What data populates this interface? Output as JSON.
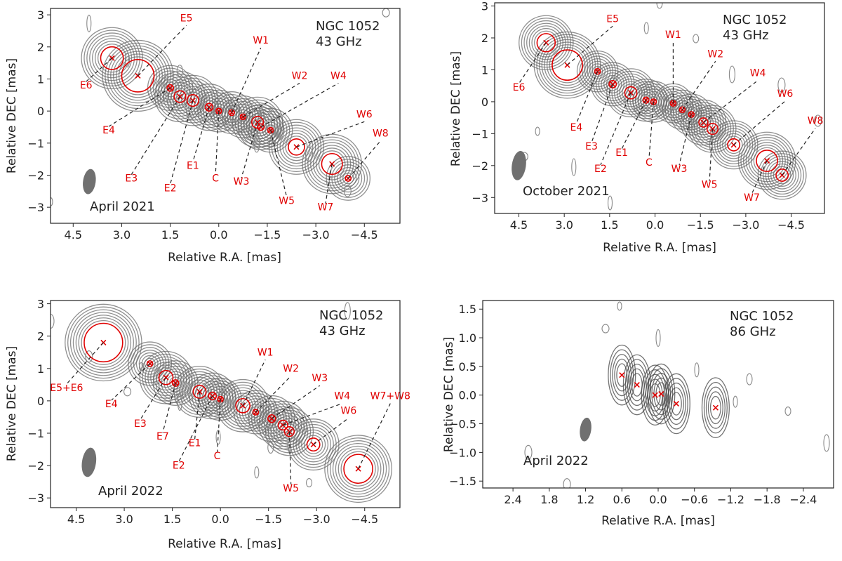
{
  "chart_data": [
    {
      "type": "scatter",
      "title": [
        "NGC 1052",
        "43 GHz"
      ],
      "epoch": "April 2021",
      "xlabel": "Relative R.A. [mas]",
      "ylabel": "Relative DEC [mas]",
      "xlim": [
        5.2,
        -5.6
      ],
      "ylim": [
        -3.5,
        3.2
      ],
      "x_ticks": [
        4.5,
        3.0,
        1.5,
        0.0,
        -1.5,
        -3.0,
        -4.5
      ],
      "x_tick_labels": [
        "4.5",
        "3.0",
        "1.5",
        "0.0",
        "−1.5",
        "−3.0",
        "−4.5"
      ],
      "y_ticks": [
        3,
        2,
        1,
        0,
        -1,
        -2,
        -3
      ],
      "y_tick_labels": [
        "3",
        "2",
        "1",
        "0",
        "−1",
        "−2",
        "−3"
      ],
      "beam": {
        "x": 4.0,
        "y": -2.2
      },
      "components": [
        {
          "name": "E6",
          "x": 3.3,
          "y": 1.65,
          "size": 0.35,
          "label_x": 4.1,
          "label_y": 0.7
        },
        {
          "name": "E5",
          "x": 2.5,
          "y": 1.1,
          "size": 0.5,
          "label_x": 1.0,
          "label_y": 2.8
        },
        {
          "name": "E4",
          "x": 1.5,
          "y": 0.72,
          "size": 0.1,
          "label_x": 3.4,
          "label_y": -0.7
        },
        {
          "name": "E3",
          "x": 1.2,
          "y": 0.45,
          "size": 0.18,
          "label_x": 2.7,
          "label_y": -2.2
        },
        {
          "name": "E2",
          "x": 0.8,
          "y": 0.33,
          "size": 0.18,
          "label_x": 1.5,
          "label_y": -2.5
        },
        {
          "name": "E1",
          "x": 0.3,
          "y": 0.12,
          "size": 0.12,
          "label_x": 0.8,
          "label_y": -1.8
        },
        {
          "name": "C",
          "x": 0.0,
          "y": 0.0,
          "size": 0.05,
          "label_x": 0.1,
          "label_y": -2.2
        },
        {
          "name": "W1",
          "x": -0.4,
          "y": -0.05,
          "size": 0.05,
          "label_x": -1.3,
          "label_y": 2.1
        },
        {
          "name": "W2",
          "x": -0.75,
          "y": -0.18,
          "size": 0.05,
          "label_x": -2.5,
          "label_y": 1.0
        },
        {
          "name": "W3",
          "x": -1.2,
          "y": -0.35,
          "size": 0.18,
          "label_x": -0.7,
          "label_y": -2.3
        },
        {
          "name": "W4",
          "x": -1.3,
          "y": -0.5,
          "size": 0.1,
          "label_x": -3.7,
          "label_y": 1.0
        },
        {
          "name": "W5",
          "x": -1.6,
          "y": -0.6,
          "size": 0.08,
          "label_x": -2.1,
          "label_y": -2.9
        },
        {
          "name": "W6",
          "x": -2.4,
          "y": -1.12,
          "size": 0.25,
          "label_x": -4.5,
          "label_y": -0.2
        },
        {
          "name": "W7",
          "x": -3.5,
          "y": -1.65,
          "size": 0.32,
          "label_x": -3.3,
          "label_y": -3.1
        },
        {
          "name": "W8",
          "x": -4.0,
          "y": -2.1,
          "size": 0.08,
          "label_x": -5.0,
          "label_y": -0.8
        }
      ]
    },
    {
      "type": "scatter",
      "title": [
        "NGC 1052",
        "43 GHz"
      ],
      "epoch": "October 2021",
      "xlabel": "Relative R.A. [mas]",
      "ylabel": "Relative DEC [mas]",
      "xlim": [
        5.3,
        -5.6
      ],
      "ylim": [
        -3.5,
        3.1
      ],
      "x_ticks": [
        4.5,
        3.0,
        1.5,
        0.0,
        -1.5,
        -3.0,
        -4.5
      ],
      "x_tick_labels": [
        "4.5",
        "3.0",
        "1.5",
        "0.0",
        "−1.5",
        "−3.0",
        "−4.5"
      ],
      "y_ticks": [
        3,
        2,
        1,
        0,
        -1,
        -2,
        -3
      ],
      "y_tick_labels": [
        "3",
        "2",
        "1",
        "0",
        "−1",
        "−2",
        "−3"
      ],
      "beam": {
        "x": 4.5,
        "y": -2.0
      },
      "components": [
        {
          "name": "E6",
          "x": 3.6,
          "y": 1.85,
          "size": 0.3,
          "label_x": 4.5,
          "label_y": 0.35
        },
        {
          "name": "E5",
          "x": 2.9,
          "y": 1.15,
          "size": 0.5,
          "label_x": 1.4,
          "label_y": 2.5
        },
        {
          "name": "E4",
          "x": 1.9,
          "y": 0.95,
          "size": 0.08,
          "label_x": 2.6,
          "label_y": -0.9
        },
        {
          "name": "E3",
          "x": 1.4,
          "y": 0.55,
          "size": 0.12,
          "label_x": 2.1,
          "label_y": -1.5
        },
        {
          "name": "E2",
          "x": 0.8,
          "y": 0.28,
          "size": 0.2,
          "label_x": 1.8,
          "label_y": -2.2
        },
        {
          "name": "E1",
          "x": 0.3,
          "y": 0.05,
          "size": 0.1,
          "label_x": 1.1,
          "label_y": -1.7
        },
        {
          "name": "C",
          "x": 0.05,
          "y": 0.0,
          "size": 0.08,
          "label_x": 0.2,
          "label_y": -2.0
        },
        {
          "name": "W1",
          "x": -0.6,
          "y": -0.05,
          "size": 0.05,
          "label_x": -0.6,
          "label_y": 2.0
        },
        {
          "name": "W2",
          "x": -0.9,
          "y": -0.25,
          "size": 0.05,
          "label_x": -2.0,
          "label_y": 1.4
        },
        {
          "name": "W3",
          "x": -1.2,
          "y": -0.4,
          "size": 0.08,
          "label_x": -0.8,
          "label_y": -2.2
        },
        {
          "name": "W4",
          "x": -1.6,
          "y": -0.65,
          "size": 0.15,
          "label_x": -3.4,
          "label_y": 0.8
        },
        {
          "name": "W5",
          "x": -1.9,
          "y": -0.85,
          "size": 0.18,
          "label_x": -1.8,
          "label_y": -2.7
        },
        {
          "name": "W6",
          "x": -2.6,
          "y": -1.35,
          "size": 0.2,
          "label_x": -4.3,
          "label_y": 0.15
        },
        {
          "name": "W7",
          "x": -3.7,
          "y": -1.85,
          "size": 0.35,
          "label_x": -3.2,
          "label_y": -3.1
        },
        {
          "name": "W8",
          "x": -4.2,
          "y": -2.3,
          "size": 0.2,
          "label_x": -5.3,
          "label_y": -0.7
        }
      ]
    },
    {
      "type": "scatter",
      "title": [
        "NGC 1052",
        "43 GHz"
      ],
      "epoch": "April 2022",
      "xlabel": "Relative R.A. [mas]",
      "ylabel": "Relative DEC [mas]",
      "xlim": [
        5.3,
        -5.6
      ],
      "ylim": [
        -3.3,
        3.1
      ],
      "x_ticks": [
        4.5,
        3.0,
        1.5,
        0.0,
        -1.5,
        -3.0,
        -4.5
      ],
      "x_tick_labels": [
        "4.5",
        "3.0",
        "1.5",
        "0.0",
        "−1.5",
        "−3.0",
        "−4.5"
      ],
      "y_ticks": [
        3,
        2,
        1,
        0,
        -1,
        -2,
        -3
      ],
      "y_tick_labels": [
        "3",
        "2",
        "1",
        "0",
        "−1",
        "−2",
        "−3"
      ],
      "beam": {
        "x": 4.1,
        "y": -1.9
      },
      "components": [
        {
          "name": "E5+E6",
          "x": 3.65,
          "y": 1.8,
          "size": 0.6,
          "label_x": 4.8,
          "label_y": 0.3
        },
        {
          "name": "E4",
          "x": 2.2,
          "y": 1.15,
          "size": 0.08,
          "label_x": 3.4,
          "label_y": -0.2
        },
        {
          "name": "E3",
          "x": 1.7,
          "y": 0.72,
          "size": 0.22,
          "label_x": 2.5,
          "label_y": -0.8
        },
        {
          "name": "E7",
          "x": 1.4,
          "y": 0.55,
          "size": 0.1,
          "label_x": 1.8,
          "label_y": -1.2
        },
        {
          "name": "E1",
          "x": 0.65,
          "y": 0.28,
          "size": 0.2,
          "label_x": 0.8,
          "label_y": -1.4
        },
        {
          "name": "E2",
          "x": 0.25,
          "y": 0.15,
          "size": 0.12,
          "label_x": 1.3,
          "label_y": -2.1
        },
        {
          "name": "C",
          "x": 0.0,
          "y": 0.05,
          "size": 0.06,
          "label_x": 0.1,
          "label_y": -1.8
        },
        {
          "name": "W1",
          "x": -0.7,
          "y": -0.15,
          "size": 0.22,
          "label_x": -1.4,
          "label_y": 1.4
        },
        {
          "name": "W2",
          "x": -1.1,
          "y": -0.35,
          "size": 0.08,
          "label_x": -2.2,
          "label_y": 0.9
        },
        {
          "name": "W3",
          "x": -1.6,
          "y": -0.55,
          "size": 0.12,
          "label_x": -3.1,
          "label_y": 0.6
        },
        {
          "name": "W4",
          "x": -1.95,
          "y": -0.75,
          "size": 0.15,
          "label_x": -3.8,
          "label_y": 0.05
        },
        {
          "name": "W5",
          "x": -2.15,
          "y": -0.95,
          "size": 0.15,
          "label_x": -2.2,
          "label_y": -2.8
        },
        {
          "name": "W6",
          "x": -2.9,
          "y": -1.35,
          "size": 0.2,
          "label_x": -4.0,
          "label_y": -0.4
        },
        {
          "name": "W7+W8",
          "x": -4.3,
          "y": -2.1,
          "size": 0.45,
          "label_x": -5.3,
          "label_y": 0.05
        }
      ]
    },
    {
      "type": "scatter",
      "title": [
        "NGC 1052",
        "86 GHz"
      ],
      "epoch": "April 2022",
      "xlabel": "Relative R.A. [mas]",
      "ylabel": "Relative DEC [mas]",
      "xlim": [
        2.9,
        -2.9
      ],
      "ylim": [
        -1.62,
        1.65
      ],
      "x_ticks": [
        2.4,
        1.8,
        1.2,
        0.6,
        0.0,
        -0.6,
        -1.2,
        -1.8,
        -2.4
      ],
      "x_tick_labels": [
        "2.4",
        "1.8",
        "1.2",
        "0.6",
        "0.0",
        "−0.6",
        "−1.2",
        "−1.8",
        "−2.4"
      ],
      "y_ticks": [
        1.5,
        1.0,
        0.5,
        0.0,
        -0.5,
        -1.0,
        -1.5
      ],
      "y_tick_labels": [
        "1.5",
        "1.0",
        "0.5",
        "0.0",
        "−0.5",
        "−1.0",
        "−1.5"
      ],
      "beam": {
        "x": 1.2,
        "y": -0.6
      },
      "components": [
        {
          "name": "",
          "x": 0.6,
          "y": 0.35,
          "size": 0,
          "label_x": 0,
          "label_y": 0
        },
        {
          "name": "",
          "x": 0.35,
          "y": 0.18,
          "size": 0,
          "label_x": 0,
          "label_y": 0
        },
        {
          "name": "",
          "x": 0.05,
          "y": 0.0,
          "size": 0,
          "label_x": 0,
          "label_y": 0
        },
        {
          "name": "",
          "x": -0.05,
          "y": 0.02,
          "size": 0,
          "label_x": 0,
          "label_y": 0
        },
        {
          "name": "",
          "x": -0.3,
          "y": -0.15,
          "size": 0,
          "label_x": 0,
          "label_y": 0
        },
        {
          "name": "",
          "x": -0.95,
          "y": -0.22,
          "size": 0,
          "label_x": 0,
          "label_y": 0
        }
      ]
    }
  ]
}
